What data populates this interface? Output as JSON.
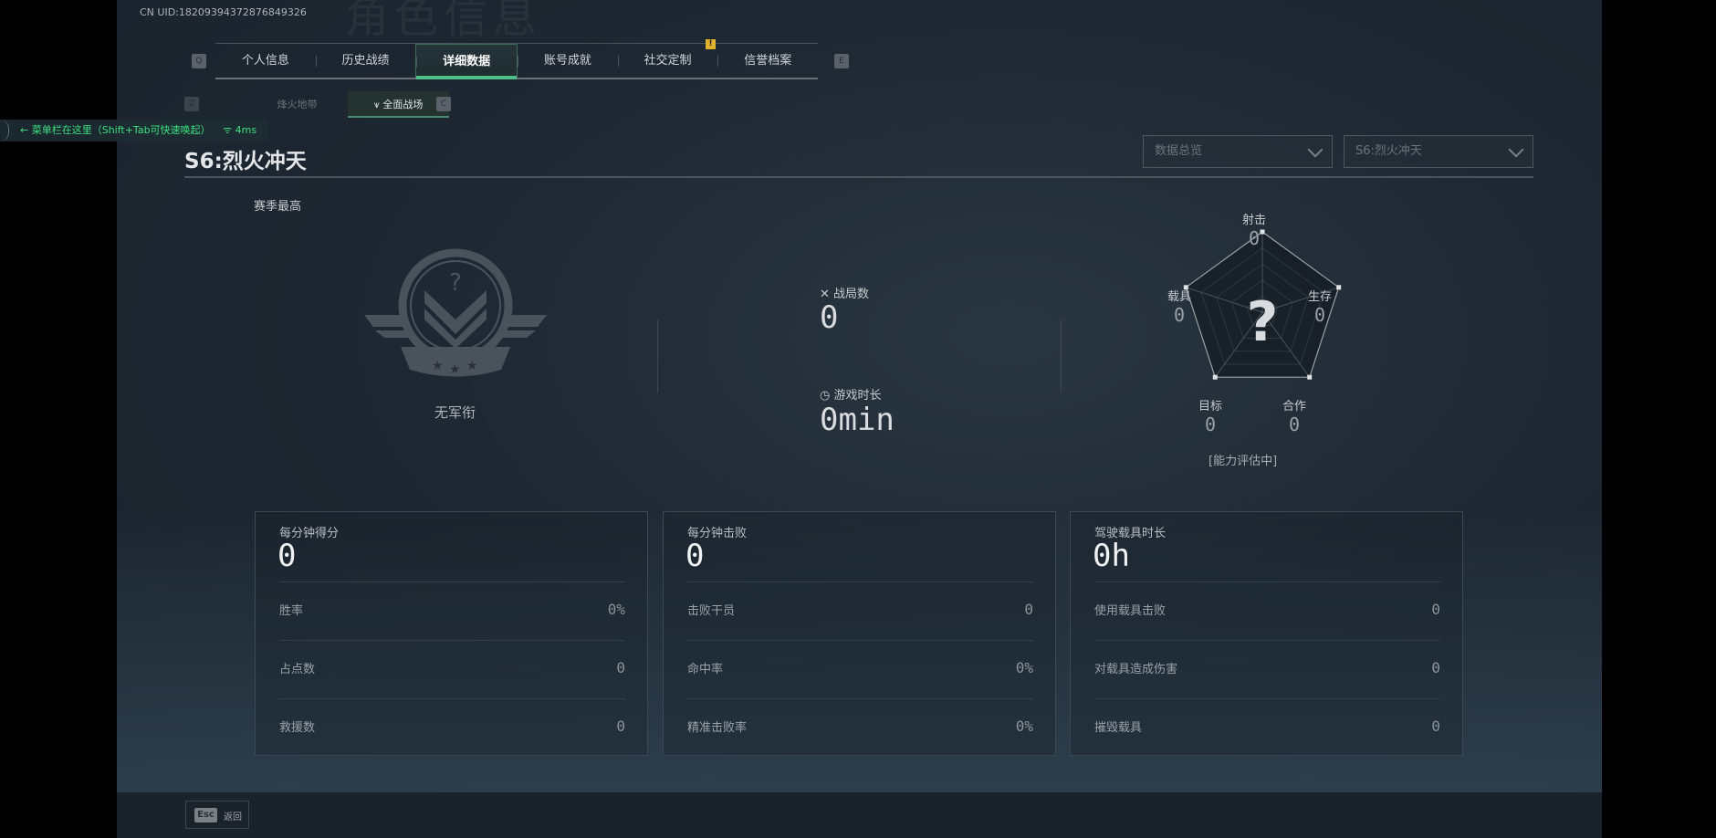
{
  "uid": "CN UID:18209394372876849326",
  "watermark_title": "角色信息",
  "menu_overlay": {
    "text": "菜单栏在这里（Shift+Tab可快速唤起）",
    "ping": "4ms"
  },
  "tabs": {
    "prev_key": "Q",
    "next_key": "E",
    "items": [
      {
        "label": "个人信息"
      },
      {
        "label": "历史战绩"
      },
      {
        "label": "详细数据",
        "active": true
      },
      {
        "label": "账号成就"
      },
      {
        "label": "社交定制"
      },
      {
        "label": "信誉档案"
      }
    ],
    "alert_badge": "!"
  },
  "subtabs": {
    "prev_key": "Z",
    "next_key": "C",
    "items": [
      {
        "label": "烽火地带"
      },
      {
        "label": "全面战场",
        "active": true
      }
    ]
  },
  "season_title": "S6:烈火冲天",
  "dropdowns": [
    {
      "value": "数据总览"
    },
    {
      "value": "S6:烈火冲天"
    }
  ],
  "rank": {
    "caption": "赛季最高",
    "name": "无军衔"
  },
  "summary": {
    "matches_label": "战局数",
    "matches_value": "0",
    "playtime_label": "游戏时长",
    "playtime_value": "0min"
  },
  "radar": {
    "axes": [
      {
        "label": "射击",
        "value": "0"
      },
      {
        "label": "生存",
        "value": "0"
      },
      {
        "label": "合作",
        "value": "0"
      },
      {
        "label": "目标",
        "value": "0"
      },
      {
        "label": "载具",
        "value": "0"
      }
    ],
    "center_symbol": "?",
    "status": "[能力评估中]"
  },
  "cards": [
    {
      "title": "每分钟得分",
      "value": "0",
      "rows": [
        {
          "label": "胜率",
          "value": "0%"
        },
        {
          "label": "占点数",
          "value": "0"
        },
        {
          "label": "救援数",
          "value": "0"
        }
      ]
    },
    {
      "title": "每分钟击败",
      "value": "0",
      "rows": [
        {
          "label": "击败干员",
          "value": "0"
        },
        {
          "label": "命中率",
          "value": "0%"
        },
        {
          "label": "精准击败率",
          "value": "0%"
        }
      ]
    },
    {
      "title": "驾驶载具时长",
      "value": "0h",
      "rows": [
        {
          "label": "使用载具击败",
          "value": "0"
        },
        {
          "label": "对载具造成伤害",
          "value": "0"
        },
        {
          "label": "摧毁载具",
          "value": "0"
        }
      ]
    }
  ],
  "footer": {
    "key": "Esc",
    "label": "返回"
  },
  "colors": {
    "accent": "#4fbf8a",
    "overlay_text": "#3ee07e",
    "warning": "#e0b32c"
  }
}
